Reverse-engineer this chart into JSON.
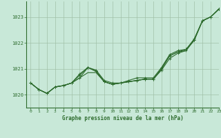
{
  "title": "Graphe pression niveau de la mer (hPa)",
  "background_color": "#c8e8d8",
  "grid_color": "#a0c0a8",
  "line_color": "#2d6b2d",
  "xlim": [
    -0.5,
    23
  ],
  "ylim": [
    1019.5,
    1023.6
  ],
  "yticks": [
    1020,
    1021,
    1022,
    1023
  ],
  "xticks": [
    0,
    1,
    2,
    3,
    4,
    5,
    6,
    7,
    8,
    9,
    10,
    11,
    12,
    13,
    14,
    15,
    16,
    17,
    18,
    19,
    20,
    21,
    22,
    23
  ],
  "series": [
    {
      "y": [
        1020.45,
        1020.2,
        1020.05,
        1020.3,
        1020.35,
        1020.45,
        1020.75,
        1021.05,
        1020.95,
        1020.55,
        1020.45,
        1020.45,
        1020.5,
        1020.55,
        1020.6,
        1020.6,
        1021.0,
        1021.5,
        1021.65,
        1021.75,
        1022.1,
        1022.85,
        1023.0,
        1023.3
      ],
      "marker": true
    },
    {
      "y": [
        1020.45,
        1020.2,
        1020.05,
        1020.3,
        1020.35,
        1020.45,
        1020.8,
        1021.05,
        1020.9,
        1020.5,
        1020.4,
        1020.45,
        1020.5,
        1020.55,
        1020.6,
        1020.6,
        1020.95,
        1021.4,
        1021.6,
        1021.7,
        1022.1,
        1022.85,
        1023.0,
        1023.3
      ],
      "marker": true
    },
    {
      "y": [
        1020.45,
        1020.2,
        1020.05,
        1020.3,
        1020.35,
        1020.45,
        1020.65,
        1020.85,
        1020.85,
        1020.5,
        1020.4,
        1020.45,
        1020.5,
        1020.55,
        1020.6,
        1020.6,
        1021.0,
        1021.5,
        1021.65,
        1021.7,
        1022.15,
        1022.85,
        1023.0,
        1023.3
      ],
      "marker": false
    },
    {
      "y": [
        1020.45,
        1020.2,
        1020.05,
        1020.3,
        1020.35,
        1020.45,
        1020.65,
        1021.05,
        1020.9,
        1020.5,
        1020.4,
        1020.45,
        1020.55,
        1020.65,
        1020.65,
        1020.65,
        1021.05,
        1021.55,
        1021.7,
        1021.75,
        1022.15,
        1022.85,
        1023.0,
        1023.3
      ],
      "marker": true
    }
  ]
}
